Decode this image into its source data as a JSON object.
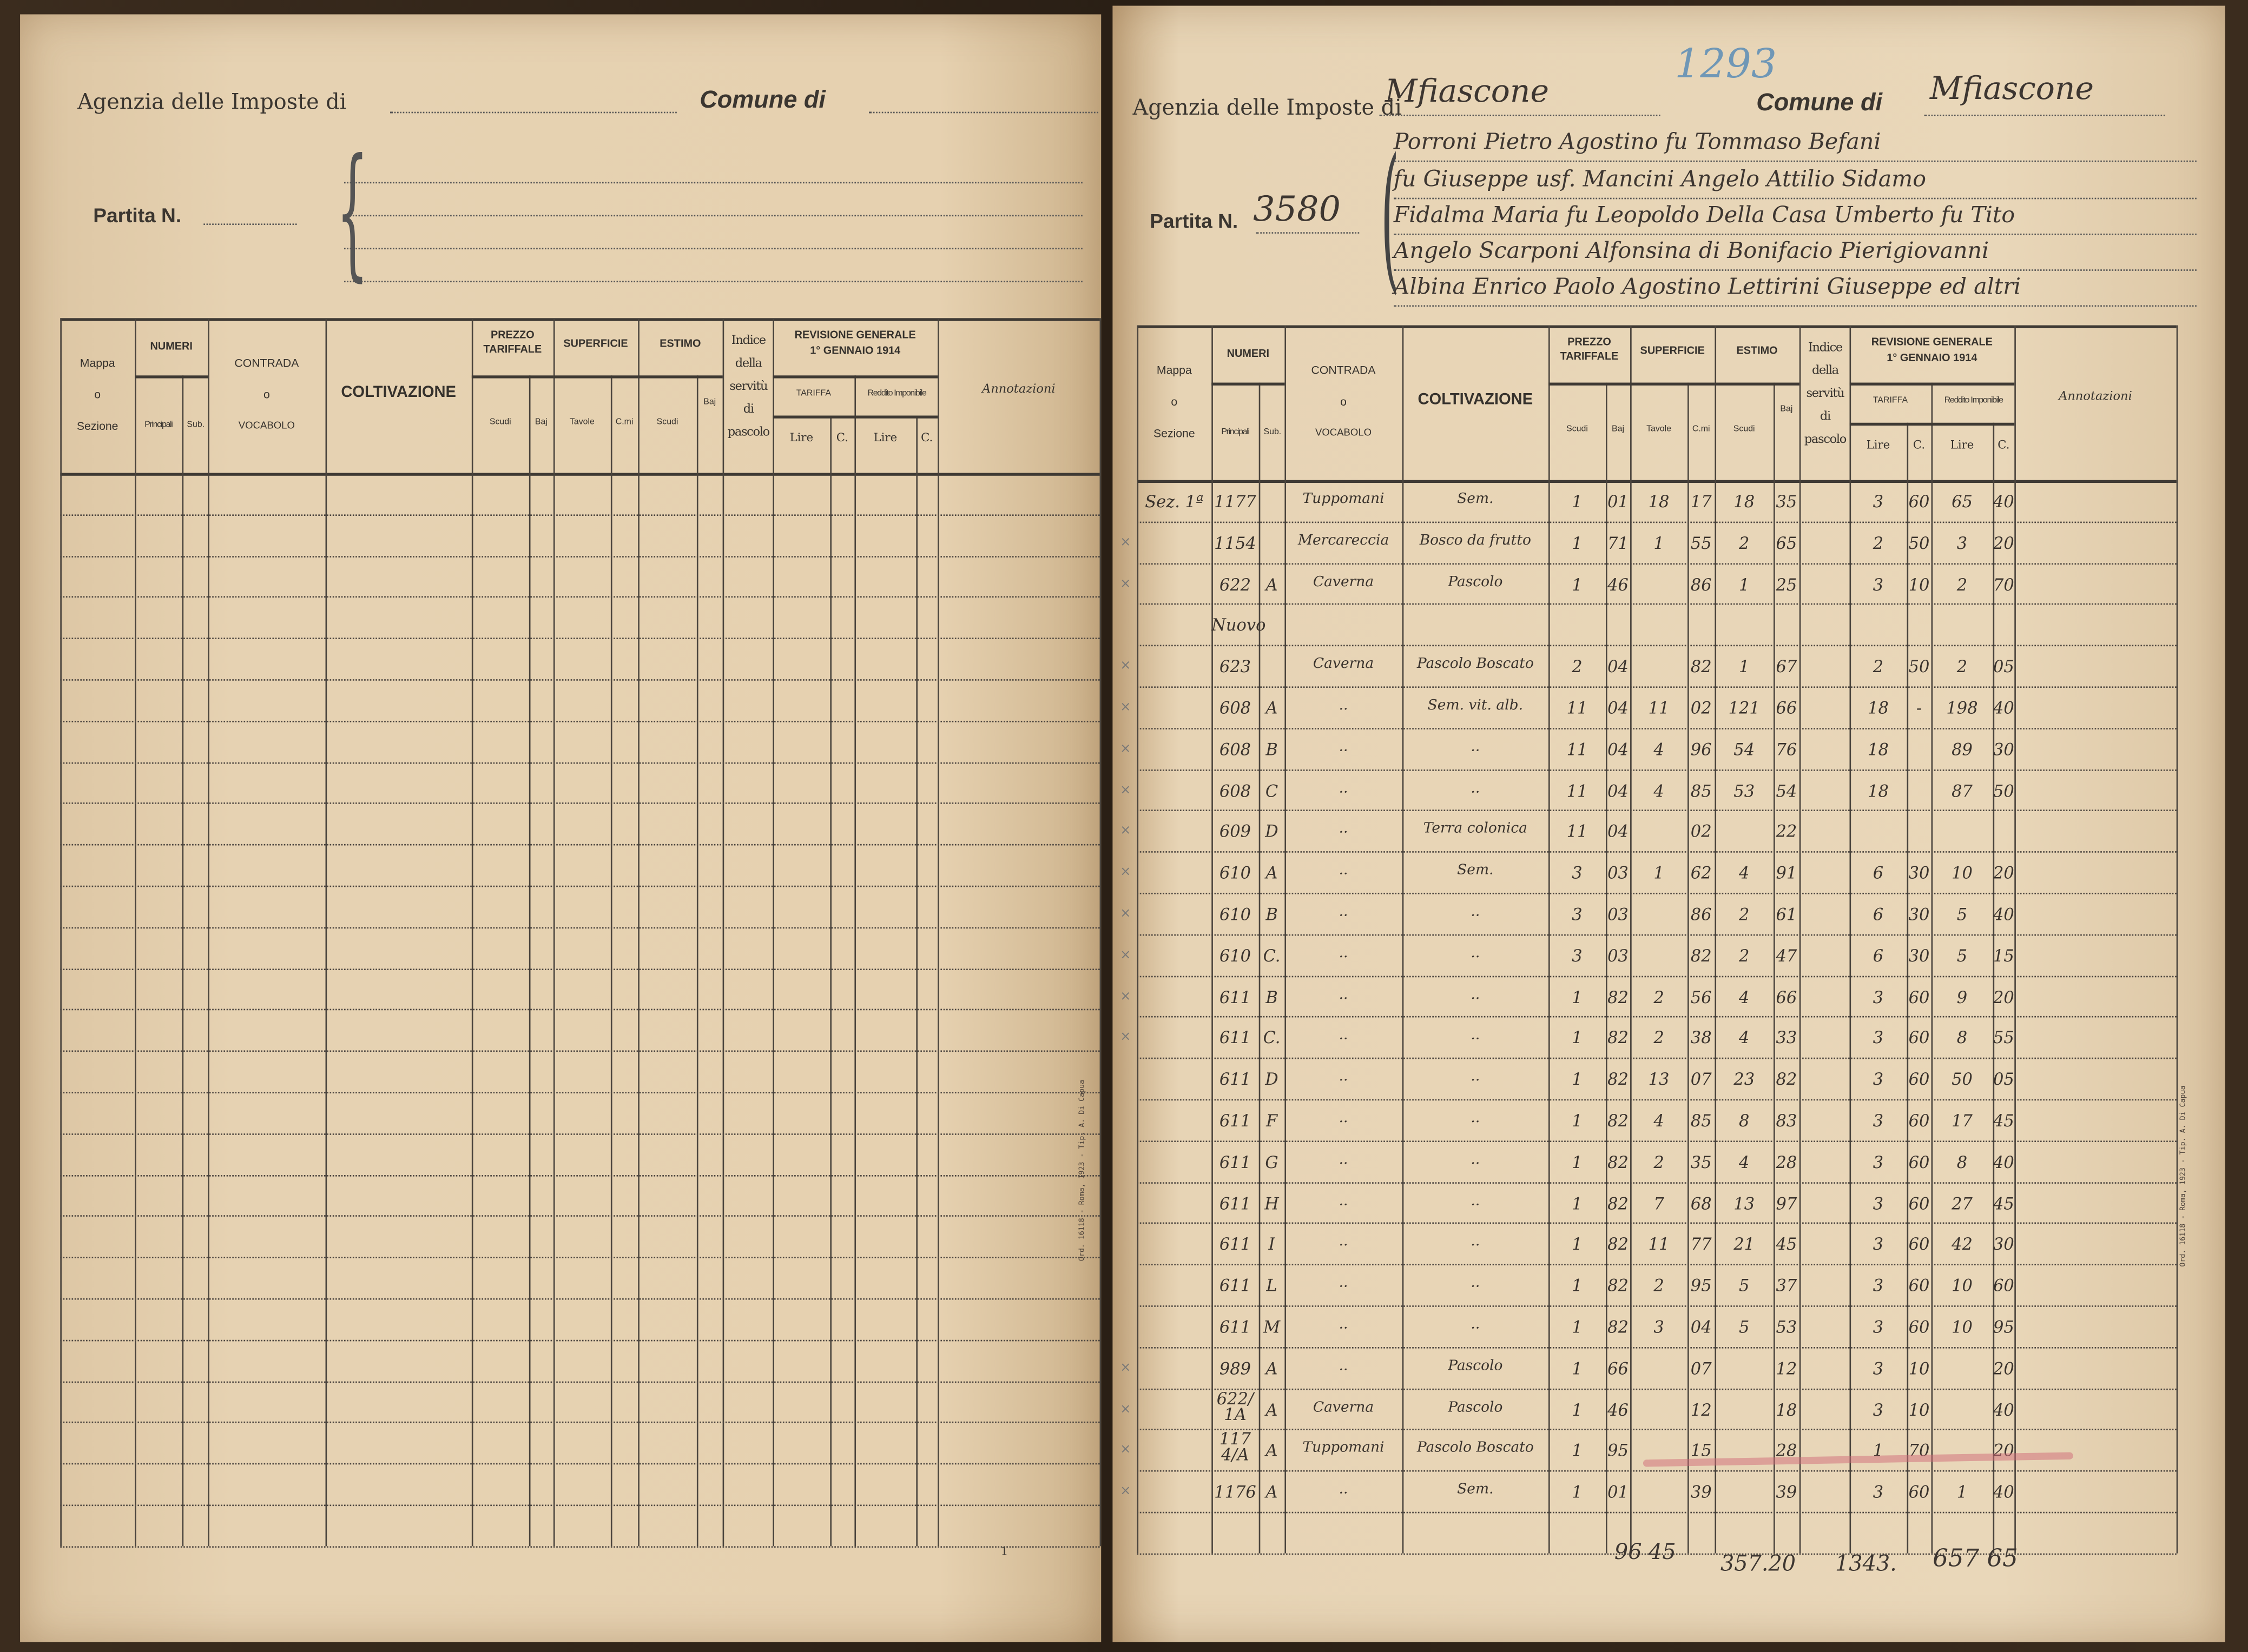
{
  "left_page": {
    "agency_label": "Agenzia delle Imposte di",
    "agency_value": "",
    "comune_label": "Comune di",
    "comune_value": "",
    "partita_label": "Partita N.",
    "partita_value": "",
    "page_number": "1",
    "imprint": "Ord. 16118 - Roma, 1923 - Tip. A. Di Capua"
  },
  "right_page": {
    "agency_label": "Agenzia delle Imposte di",
    "agency_value": "Mfiascone",
    "register_number": "1293",
    "comune_label": "Comune di",
    "comune_value": "Mfiascone",
    "partita_label": "Partita N.",
    "partita_value": "3580",
    "owners": [
      "Porroni Pietro Agostino fu Tommaso Befani",
      "fu Giuseppe usf. Mancini Angelo Attilio Sidamo",
      "Fidalma Maria fu Leopoldo Della Casa Umberto fu Tito",
      "Angelo Scarponi Alfonsina di Bonifacio Pierigiovanni",
      "Albina Enrico Paolo Agostino Lettirini Giuseppe ed altri"
    ],
    "imprint": "Ord. 16118 - Roma, 1923 - Tip. A. Di Capua",
    "totals": {
      "superficie": "96 45",
      "estimo": "357.20",
      "tariffa": "1343.",
      "reddito": "657 65"
    }
  },
  "table_header": {
    "mappa": [
      "Mappa",
      "o",
      "Sezione"
    ],
    "numeri": "NUMERI",
    "principali": "Principali",
    "sub": "Sub.",
    "contrada": [
      "CONTRADA",
      "o",
      "VOCABOLO"
    ],
    "coltivazione": "COLTIVAZIONE",
    "prezzo": [
      "PREZZO",
      "TARIFFALE"
    ],
    "superficie": "SUPERFICIE",
    "estimo": "ESTIMO",
    "scudi": "Scudi",
    "baj": "Baj",
    "tavole": "Tavole",
    "cmi": "C.mi",
    "indice": [
      "Indice",
      "della",
      "servitù",
      "di",
      "pascolo"
    ],
    "revisione": [
      "REVISIONE GENERALE",
      "1° GENNAIO 1914"
    ],
    "tariffa": "TARIFFA",
    "reddito": "Reddito Imponibile",
    "lire": "Lire",
    "c": "C.",
    "annotazioni": "Annotazioni"
  },
  "rows": [
    {
      "mark": "",
      "mappa": "Sez. 1ª",
      "principale": "1177",
      "sub": "",
      "contrada": "Tuppomani",
      "coltivazione": "Sem.",
      "prezzo": [
        "1",
        "01"
      ],
      "superficie": [
        "18",
        "17"
      ],
      "estimo": [
        "18",
        "35"
      ],
      "tariffa": [
        "3",
        "60"
      ],
      "reddito": [
        "65",
        "40"
      ]
    },
    {
      "mark": "×",
      "mappa": "",
      "principale": "1154",
      "sub": "",
      "contrada": "Mercareccia",
      "coltivazione": "Bosco da frutto",
      "prezzo": [
        "1",
        "71"
      ],
      "superficie": [
        "1",
        "55"
      ],
      "estimo": [
        "2",
        "65"
      ],
      "tariffa": [
        "2",
        "50"
      ],
      "reddito": [
        "3",
        "20"
      ]
    },
    {
      "mark": "×",
      "mappa": "",
      "principale": "622",
      "sub": "A",
      "contrada": "Caverna",
      "coltivazione": "Pascolo",
      "prezzo": [
        "1",
        "46"
      ],
      "superficie": [
        "",
        "86"
      ],
      "estimo": [
        "1",
        "25"
      ],
      "tariffa": [
        "3",
        "10"
      ],
      "reddito": [
        "2",
        "70"
      ]
    },
    {
      "mark": "",
      "mappa": "",
      "principale": "Nuovo",
      "sub": "",
      "contrada": "",
      "coltivazione": "",
      "prezzo": [
        "",
        ""
      ],
      "superficie": [
        "",
        ""
      ],
      "estimo": [
        "",
        ""
      ],
      "tariffa": [
        "",
        ""
      ],
      "reddito": [
        "",
        ""
      ]
    },
    {
      "mark": "×",
      "mappa": "",
      "principale": "623",
      "sub": "",
      "contrada": "Caverna",
      "coltivazione": "Pascolo Boscato",
      "prezzo": [
        "2",
        "04"
      ],
      "superficie": [
        "",
        "82"
      ],
      "estimo": [
        "1",
        "67"
      ],
      "tariffa": [
        "2",
        "50"
      ],
      "reddito": [
        "2",
        "05"
      ]
    },
    {
      "mark": "×",
      "mappa": "",
      "principale": "608",
      "sub": "A",
      "contrada": "..",
      "coltivazione": "Sem. vit. alb.",
      "prezzo": [
        "11",
        "04"
      ],
      "superficie": [
        "11",
        "02"
      ],
      "estimo": [
        "121",
        "66"
      ],
      "tariffa": [
        "18",
        "-"
      ],
      "reddito": [
        "198",
        "40"
      ]
    },
    {
      "mark": "×",
      "mappa": "",
      "principale": "608",
      "sub": "B",
      "contrada": "..",
      "coltivazione": "..",
      "prezzo": [
        "11",
        "04"
      ],
      "superficie": [
        "4",
        "96"
      ],
      "estimo": [
        "54",
        "76"
      ],
      "tariffa": [
        "18",
        ""
      ],
      "reddito": [
        "89",
        "30"
      ]
    },
    {
      "mark": "×",
      "mappa": "",
      "principale": "608",
      "sub": "C",
      "contrada": "..",
      "coltivazione": "..",
      "prezzo": [
        "11",
        "04"
      ],
      "superficie": [
        "4",
        "85"
      ],
      "estimo": [
        "53",
        "54"
      ],
      "tariffa": [
        "18",
        ""
      ],
      "reddito": [
        "87",
        "50"
      ]
    },
    {
      "mark": "×",
      "mappa": "",
      "principale": "609",
      "sub": "D",
      "contrada": "..",
      "coltivazione": "Terra colonica",
      "prezzo": [
        "11",
        "04"
      ],
      "superficie": [
        "",
        "02"
      ],
      "estimo": [
        "",
        "22"
      ],
      "tariffa": [
        "",
        ""
      ],
      "reddito": [
        "",
        ""
      ]
    },
    {
      "mark": "×",
      "mappa": "",
      "principale": "610",
      "sub": "A",
      "contrada": "..",
      "coltivazione": "Sem.",
      "prezzo": [
        "3",
        "03"
      ],
      "superficie": [
        "1",
        "62"
      ],
      "estimo": [
        "4",
        "91"
      ],
      "tariffa": [
        "6",
        "30"
      ],
      "reddito": [
        "10",
        "20"
      ]
    },
    {
      "mark": "×",
      "mappa": "",
      "principale": "610",
      "sub": "B",
      "contrada": "..",
      "coltivazione": "..",
      "prezzo": [
        "3",
        "03"
      ],
      "superficie": [
        "",
        "86"
      ],
      "estimo": [
        "2",
        "61"
      ],
      "tariffa": [
        "6",
        "30"
      ],
      "reddito": [
        "5",
        "40"
      ]
    },
    {
      "mark": "×",
      "mappa": "",
      "principale": "610",
      "sub": "C.",
      "contrada": "..",
      "coltivazione": "..",
      "prezzo": [
        "3",
        "03"
      ],
      "superficie": [
        "",
        "82"
      ],
      "estimo": [
        "2",
        "47"
      ],
      "tariffa": [
        "6",
        "30"
      ],
      "reddito": [
        "5",
        "15"
      ]
    },
    {
      "mark": "×",
      "mappa": "",
      "principale": "611",
      "sub": "B",
      "contrada": "..",
      "coltivazione": "..",
      "prezzo": [
        "1",
        "82"
      ],
      "superficie": [
        "2",
        "56"
      ],
      "estimo": [
        "4",
        "66"
      ],
      "tariffa": [
        "3",
        "60"
      ],
      "reddito": [
        "9",
        "20"
      ]
    },
    {
      "mark": "×",
      "mappa": "",
      "principale": "611",
      "sub": "C.",
      "contrada": "..",
      "coltivazione": "..",
      "prezzo": [
        "1",
        "82"
      ],
      "superficie": [
        "2",
        "38"
      ],
      "estimo": [
        "4",
        "33"
      ],
      "tariffa": [
        "3",
        "60"
      ],
      "reddito": [
        "8",
        "55"
      ]
    },
    {
      "mark": "",
      "mappa": "",
      "principale": "611",
      "sub": "D",
      "contrada": "..",
      "coltivazione": "..",
      "prezzo": [
        "1",
        "82"
      ],
      "superficie": [
        "13",
        "07"
      ],
      "estimo": [
        "23",
        "82"
      ],
      "tariffa": [
        "3",
        "60"
      ],
      "reddito": [
        "50",
        "05"
      ]
    },
    {
      "mark": "",
      "mappa": "",
      "principale": "611",
      "sub": "F",
      "contrada": "..",
      "coltivazione": "..",
      "prezzo": [
        "1",
        "82"
      ],
      "superficie": [
        "4",
        "85"
      ],
      "estimo": [
        "8",
        "83"
      ],
      "tariffa": [
        "3",
        "60"
      ],
      "reddito": [
        "17",
        "45"
      ]
    },
    {
      "mark": "",
      "mappa": "",
      "principale": "611",
      "sub": "G",
      "contrada": "..",
      "coltivazione": "..",
      "prezzo": [
        "1",
        "82"
      ],
      "superficie": [
        "2",
        "35"
      ],
      "estimo": [
        "4",
        "28"
      ],
      "tariffa": [
        "3",
        "60"
      ],
      "reddito": [
        "8",
        "40"
      ]
    },
    {
      "mark": "",
      "mappa": "",
      "principale": "611",
      "sub": "H",
      "contrada": "..",
      "coltivazione": "..",
      "prezzo": [
        "1",
        "82"
      ],
      "superficie": [
        "7",
        "68"
      ],
      "estimo": [
        "13",
        "97"
      ],
      "tariffa": [
        "3",
        "60"
      ],
      "reddito": [
        "27",
        "45"
      ]
    },
    {
      "mark": "",
      "mappa": "",
      "principale": "611",
      "sub": "I",
      "contrada": "..",
      "coltivazione": "..",
      "prezzo": [
        "1",
        "82"
      ],
      "superficie": [
        "11",
        "77"
      ],
      "estimo": [
        "21",
        "45"
      ],
      "tariffa": [
        "3",
        "60"
      ],
      "reddito": [
        "42",
        "30"
      ]
    },
    {
      "mark": "",
      "mappa": "",
      "principale": "611",
      "sub": "L",
      "contrada": "..",
      "coltivazione": "..",
      "prezzo": [
        "1",
        "82"
      ],
      "superficie": [
        "2",
        "95"
      ],
      "estimo": [
        "5",
        "37"
      ],
      "tariffa": [
        "3",
        "60"
      ],
      "reddito": [
        "10",
        "60"
      ]
    },
    {
      "mark": "",
      "mappa": "",
      "principale": "611",
      "sub": "M",
      "contrada": "..",
      "coltivazione": "..",
      "prezzo": [
        "1",
        "82"
      ],
      "superficie": [
        "3",
        "04"
      ],
      "estimo": [
        "5",
        "53"
      ],
      "tariffa": [
        "3",
        "60"
      ],
      "reddito": [
        "10",
        "95"
      ]
    },
    {
      "mark": "×",
      "mappa": "",
      "principale": "989",
      "sub": "A",
      "contrada": "..",
      "coltivazione": "Pascolo",
      "prezzo": [
        "1",
        "66"
      ],
      "superficie": [
        "",
        "07"
      ],
      "estimo": [
        "",
        "12"
      ],
      "tariffa": [
        "3",
        "10"
      ],
      "reddito": [
        "",
        "20"
      ]
    },
    {
      "mark": "×",
      "mappa": "",
      "principale": "622/1A",
      "sub": "A",
      "contrada": "Caverna",
      "coltivazione": "Pascolo",
      "prezzo": [
        "1",
        "46"
      ],
      "superficie": [
        "",
        "12"
      ],
      "estimo": [
        "",
        "18"
      ],
      "tariffa": [
        "3",
        "10"
      ],
      "reddito": [
        "",
        "40"
      ]
    },
    {
      "mark": "×",
      "mappa": "",
      "principale": "1174/A",
      "sub": "A",
      "contrada": "Tuppomani",
      "coltivazione": "Pascolo Boscato",
      "prezzo": [
        "1",
        "95"
      ],
      "superficie": [
        "",
        "15"
      ],
      "estimo": [
        "",
        "28"
      ],
      "tariffa": [
        "1",
        "70"
      ],
      "reddito": [
        "",
        "20"
      ]
    },
    {
      "mark": "×",
      "mappa": "",
      "principale": "1176",
      "sub": "A",
      "contrada": "..",
      "coltivazione": "Sem.",
      "prezzo": [
        "1",
        "01"
      ],
      "superficie": [
        "",
        "39"
      ],
      "estimo": [
        "",
        "39"
      ],
      "tariffa": [
        "3",
        "60"
      ],
      "reddito": [
        "1",
        "40"
      ]
    }
  ],
  "colors": {
    "paper": "#e6d2b2",
    "ink": "#3a332d",
    "blue_pencil": "#5b8fb3",
    "red_pencil": "#d06a78"
  }
}
